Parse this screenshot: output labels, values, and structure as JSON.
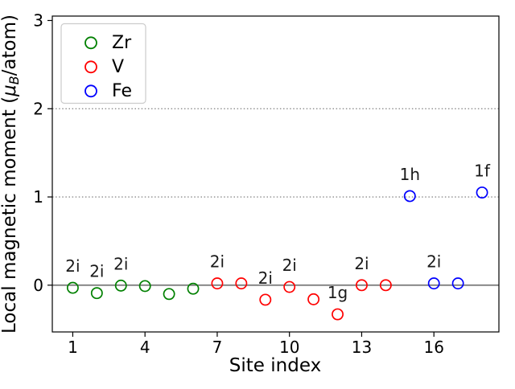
{
  "figure": {
    "background": "#ffffff"
  },
  "chart_data": {
    "type": "scatter",
    "title": "",
    "xlabel": "Site index",
    "ylabel": "Local magnetic moment (μB/atom)",
    "ylabel_parts": {
      "prefix": "Local magnetic moment (",
      "mu": "μ",
      "sub": "B",
      "suffix": "/atom)"
    },
    "xlim": [
      0.15,
      18.7
    ],
    "ylim": [
      -0.53,
      3.05
    ],
    "xticks": [
      1,
      4,
      7,
      10,
      13,
      16
    ],
    "yticks": [
      0,
      1,
      2,
      3
    ],
    "dotted_gridlines_y": [
      1,
      2
    ],
    "zero_line_y": 0,
    "grid_color": "#8c8c8c",
    "zero_line_color": "#808080",
    "annotation_color": "#1a1a1a",
    "frame_color": "#000000",
    "legend_position": "upper left",
    "marker_style": "open-circle",
    "series": [
      {
        "name": "Zr",
        "color": "#008000",
        "points": [
          {
            "x": 1,
            "y": -0.03,
            "label": "2i"
          },
          {
            "x": 2,
            "y": -0.09,
            "label": "2i"
          },
          {
            "x": 3,
            "y": -0.005,
            "label": "2i"
          },
          {
            "x": 4,
            "y": -0.01
          },
          {
            "x": 5,
            "y": -0.1
          },
          {
            "x": 6,
            "y": -0.04
          }
        ]
      },
      {
        "name": "V",
        "color": "#ff0000",
        "points": [
          {
            "x": 7,
            "y": 0.02,
            "label": "2i"
          },
          {
            "x": 8,
            "y": 0.02
          },
          {
            "x": 9,
            "y": -0.165,
            "label": "2i"
          },
          {
            "x": 10,
            "y": -0.02,
            "label": "2i"
          },
          {
            "x": 11,
            "y": -0.16
          },
          {
            "x": 12,
            "y": -0.33,
            "label": "1g"
          },
          {
            "x": 13,
            "y": 0.0,
            "label": "2i"
          },
          {
            "x": 14,
            "y": 0.0
          }
        ]
      },
      {
        "name": "Fe",
        "color": "#0000ff",
        "points": [
          {
            "x": 15,
            "y": 1.01,
            "label": "1h"
          },
          {
            "x": 16,
            "y": 0.02,
            "label": "2i"
          },
          {
            "x": 17,
            "y": 0.02
          },
          {
            "x": 18,
            "y": 1.05,
            "label": "1f"
          }
        ]
      }
    ]
  }
}
